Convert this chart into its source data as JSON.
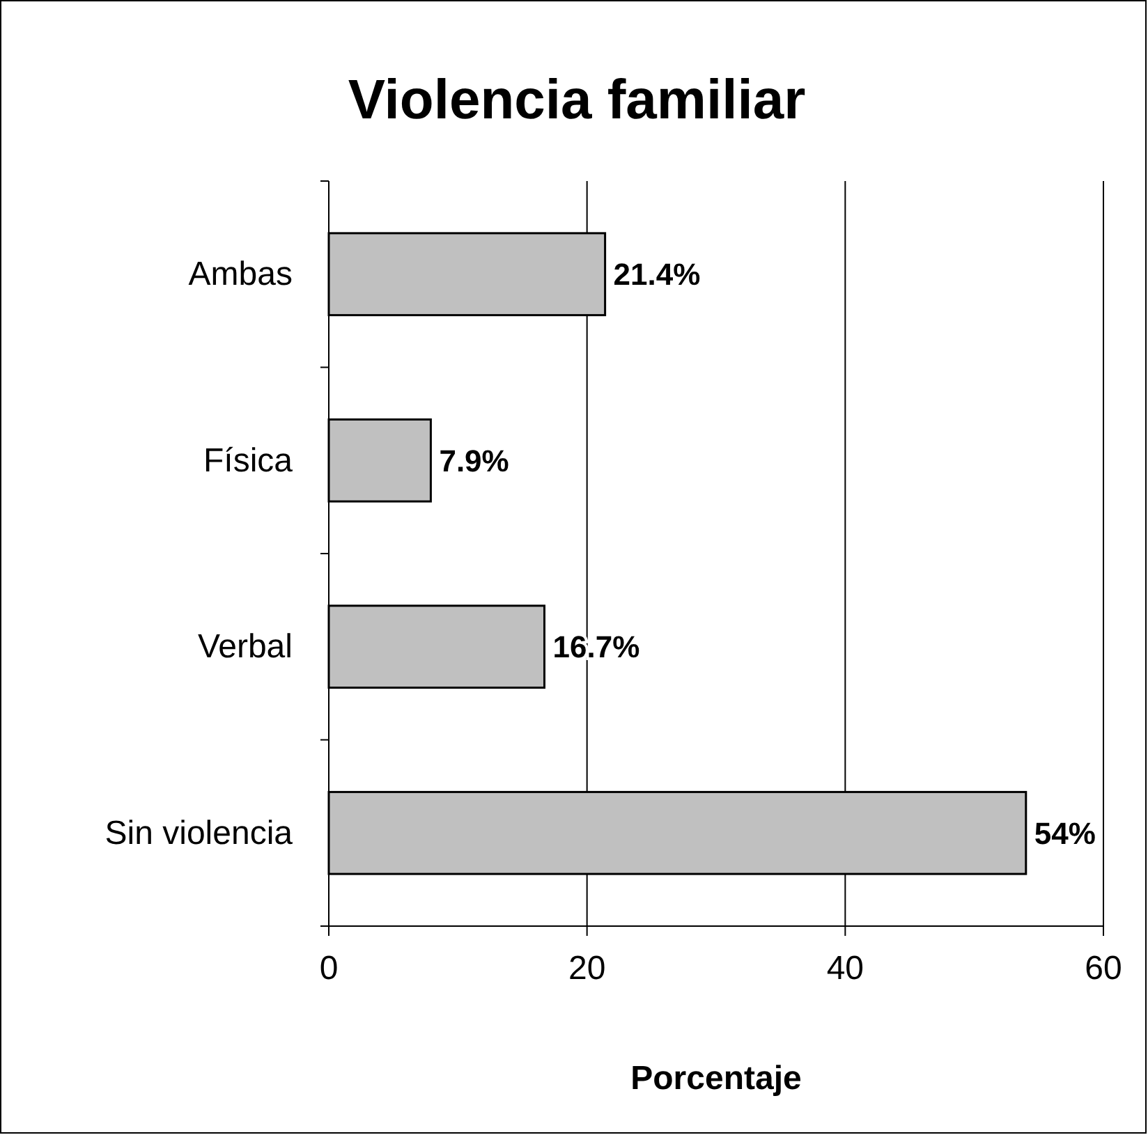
{
  "chart_data": {
    "type": "bar",
    "orientation": "horizontal",
    "title": "Violencia familiar",
    "xlabel": "Porcentaje",
    "categories": [
      "Ambas",
      "Física",
      "Verbal",
      "Sin violencia"
    ],
    "values": [
      21.4,
      7.9,
      16.7,
      54
    ],
    "value_labels": [
      "21.4%",
      "7.9%",
      "16.7%",
      "54%"
    ],
    "color": "#c0c0c0",
    "xlim": [
      0,
      60
    ],
    "xticks": [
      0,
      20,
      40,
      60
    ],
    "grid": "x"
  }
}
